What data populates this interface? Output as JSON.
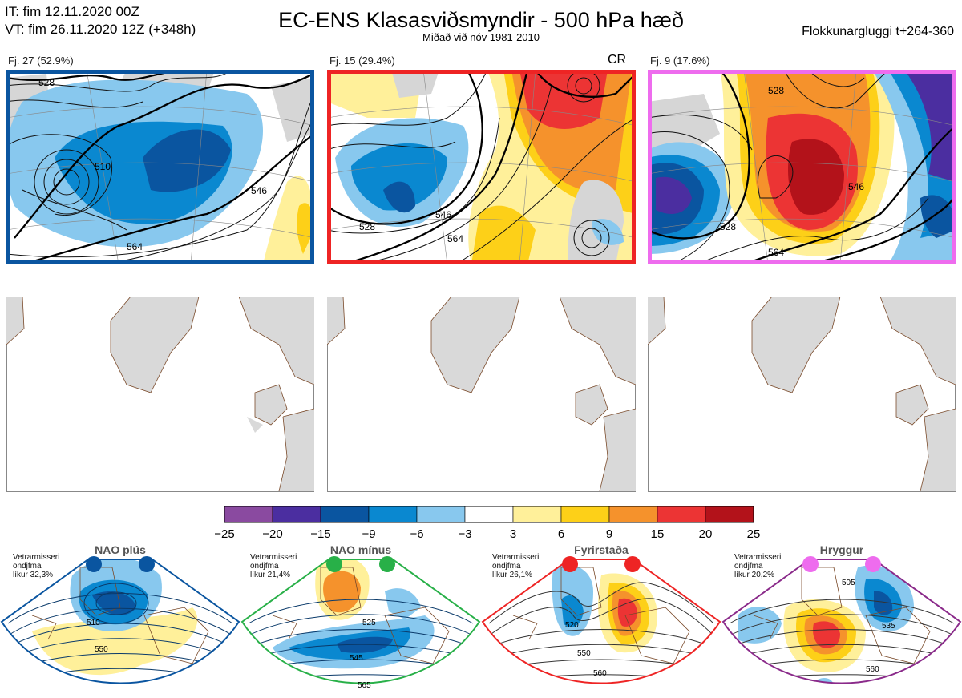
{
  "header": {
    "it_line": "IT: fim 12.11.2020 00Z",
    "vt_line": "VT: fim 26.11.2020 12Z  (+348h)",
    "title": "EC-ENS Klasasviðsmyndir - 500 hPa hæð",
    "subtitle": "Miðað við nóv 1981-2010",
    "window": "Flokkunargluggi t+264-360"
  },
  "clusters": [
    {
      "label": "Fj. 27 (52.9%)",
      "border": "#0a55a0",
      "badge": ""
    },
    {
      "label": "Fj. 15 (29.4%)",
      "border": "#ee2424",
      "badge": "CR"
    },
    {
      "label": "Fj. 9 (17.6%)",
      "border": "#ee6cee",
      "badge": ""
    }
  ],
  "contour_labels": [
    "528",
    "564",
    "546",
    "510"
  ],
  "colorbar": {
    "ticks": [
      "−25",
      "−20",
      "−15",
      "−9",
      "−6",
      "−3",
      "3",
      "6",
      "9",
      "15",
      "20",
      "25"
    ],
    "colors": [
      "#8a4aa0",
      "#4b2ea0",
      "#0a55a0",
      "#0a88d0",
      "#88c8ee",
      "#ffffff",
      "#fff09a",
      "#fdd018",
      "#f5922c",
      "#ec3434",
      "#b3121a"
    ]
  },
  "regimes": [
    {
      "name": "NAO plús",
      "stat": [
        "Vetrarmisseri",
        "ondjfma",
        "líkur 32,3%"
      ],
      "color": "#0a55a0",
      "labels": [
        "510",
        "550"
      ]
    },
    {
      "name": "NAO mínus",
      "stat": [
        "Vetrarmisseri",
        "ondjfma",
        "líkur 21,4%"
      ],
      "color": "#28b048",
      "labels": [
        "525",
        "545",
        "565"
      ]
    },
    {
      "name": "Fyrirstaða",
      "stat": [
        "Vetrarmisseri",
        "ondjfma",
        "líkur 26,1%"
      ],
      "color": "#ee2424",
      "labels": [
        "520",
        "550",
        "560"
      ]
    },
    {
      "name": "Hryggur",
      "stat": [
        "Vetrarmisseri",
        "ondjfma",
        "líkur 20,2%"
      ],
      "color": "#ee6cee",
      "labels": [
        "505",
        "535",
        "560"
      ]
    }
  ]
}
